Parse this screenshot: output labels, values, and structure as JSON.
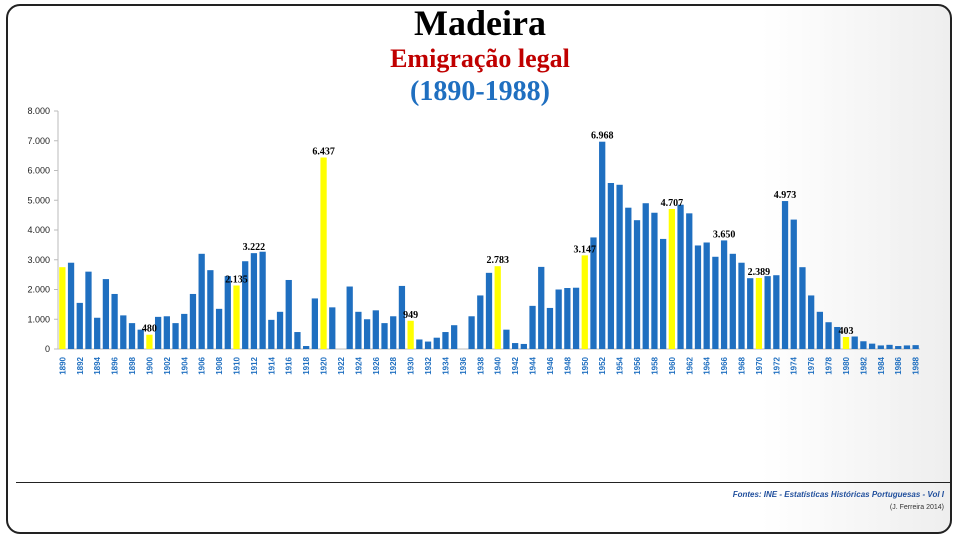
{
  "title": "Madeira",
  "subtitle": "Emigração legal",
  "period": "(1890-1988)",
  "source": "Fontes: INE - Estatísticas Históricas Portuguesas - Vol I",
  "credit": "(J. Ferreira 2014)",
  "colors": {
    "bar": "#1f6fc0",
    "highlight": "#ffff00",
    "title_red": "#c00000",
    "title_blue": "#1f6fc0"
  },
  "chart_data": {
    "type": "bar",
    "ylim": [
      0,
      8000
    ],
    "yticks": [
      "0",
      "1.000",
      "2.000",
      "3.000",
      "4.000",
      "5.000",
      "6.000",
      "7.000",
      "8.000"
    ],
    "x": [
      1890,
      1891,
      1892,
      1893,
      1894,
      1895,
      1896,
      1897,
      1898,
      1899,
      1900,
      1901,
      1902,
      1903,
      1904,
      1905,
      1906,
      1907,
      1908,
      1909,
      1910,
      1911,
      1912,
      1913,
      1914,
      1915,
      1916,
      1917,
      1918,
      1919,
      1920,
      1921,
      1922,
      1923,
      1924,
      1925,
      1926,
      1927,
      1928,
      1929,
      1930,
      1931,
      1932,
      1933,
      1934,
      1935,
      1936,
      1937,
      1938,
      1939,
      1940,
      1941,
      1942,
      1943,
      1944,
      1945,
      1946,
      1947,
      1948,
      1949,
      1950,
      1951,
      1952,
      1953,
      1954,
      1955,
      1956,
      1957,
      1958,
      1959,
      1960,
      1961,
      1962,
      1963,
      1964,
      1965,
      1966,
      1967,
      1968,
      1969,
      1970,
      1971,
      1972,
      1973,
      1974,
      1975,
      1976,
      1977,
      1978,
      1979,
      1980,
      1981,
      1982,
      1983,
      1984,
      1985,
      1986,
      1987,
      1988
    ],
    "xtick_labels": [
      "1890",
      "1892",
      "1894",
      "1896",
      "1898",
      "1900",
      "1902",
      "1904",
      "1906",
      "1908",
      "1910",
      "1912",
      "1914",
      "1916",
      "1918",
      "1920",
      "1922",
      "1924",
      "1926",
      "1928",
      "1930",
      "1932",
      "1934",
      "1936",
      "1938",
      "1940",
      "1942",
      "1944",
      "1946",
      "1948",
      "1950",
      "1952",
      "1954",
      "1956",
      "1958",
      "1960",
      "1962",
      "1964",
      "1966",
      "1968",
      "1970",
      "1972",
      "1974",
      "1976",
      "1978",
      "1980",
      "1982",
      "1984",
      "1986",
      "1988"
    ],
    "values": [
      2750,
      2900,
      1550,
      2600,
      1050,
      2350,
      1850,
      1130,
      870,
      650,
      480,
      1080,
      1100,
      870,
      1180,
      1850,
      3200,
      2650,
      1350,
      2450,
      2135,
      2950,
      3222,
      3270,
      980,
      1250,
      2320,
      570,
      100,
      1700,
      6437,
      1400,
      0,
      2100,
      1250,
      1000,
      1300,
      870,
      1100,
      2120,
      949,
      320,
      250,
      380,
      570,
      800,
      0,
      1100,
      1800,
      2560,
      2783,
      650,
      200,
      170,
      1450,
      2760,
      1380,
      2000,
      2050,
      2060,
      3147,
      3750,
      6968,
      5580,
      5520,
      4750,
      4330,
      4900,
      4580,
      3700,
      4707,
      4850,
      4560,
      3480,
      3580,
      3100,
      3650,
      3200,
      2900,
      2380,
      2389,
      2450,
      2480,
      4973,
      4350,
      2750,
      1800,
      1250,
      900,
      740,
      403,
      420,
      260,
      180,
      120,
      140,
      100,
      120,
      130
    ],
    "highlight_years": [
      1890,
      1900,
      1910,
      1920,
      1930,
      1940,
      1950,
      1960,
      1970,
      1980
    ],
    "data_labels": [
      {
        "year": 1900,
        "text": "480"
      },
      {
        "year": 1910,
        "text": "2.135"
      },
      {
        "year": 1912,
        "text": "3.222"
      },
      {
        "year": 1920,
        "text": "6.437"
      },
      {
        "year": 1930,
        "text": "949"
      },
      {
        "year": 1940,
        "text": "2.783"
      },
      {
        "year": 1950,
        "text": "3.147"
      },
      {
        "year": 1952,
        "text": "6.968"
      },
      {
        "year": 1960,
        "text": "4.707"
      },
      {
        "year": 1966,
        "text": "3.650"
      },
      {
        "year": 1970,
        "text": "2.389"
      },
      {
        "year": 1973,
        "text": "4.973"
      },
      {
        "year": 1980,
        "text": "403"
      }
    ],
    "grid": false,
    "legend": "none"
  }
}
